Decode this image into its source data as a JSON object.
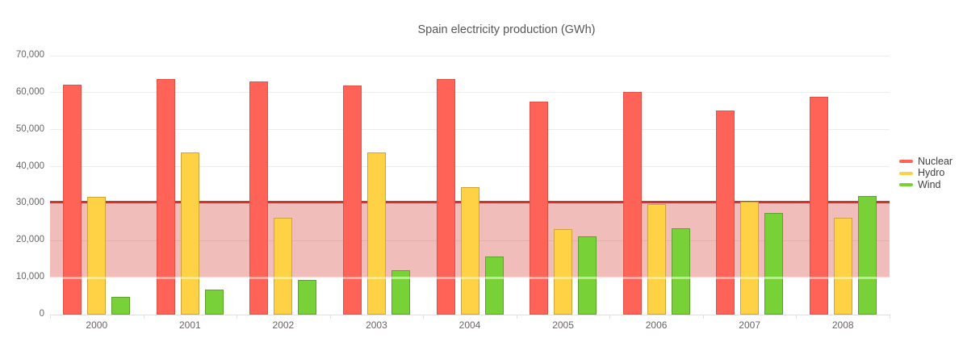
{
  "chart_data": {
    "type": "bar",
    "title": "Spain electricity production (GWh)",
    "categories": [
      "2000",
      "2001",
      "2002",
      "2003",
      "2004",
      "2005",
      "2006",
      "2007",
      "2008"
    ],
    "series": [
      {
        "name": "Nuclear",
        "color": "#ff6358",
        "border_color": "#dd5147",
        "values": [
          62206,
          63708,
          63016,
          61875,
          63606,
          57539,
          60126,
          55102,
          58973
        ]
      },
      {
        "name": "Hydro",
        "color": "#ffd246",
        "border_color": "#cfa43b",
        "values": [
          31807,
          43864,
          26270,
          43897,
          34439,
          23025,
          29831,
          30522,
          26112
        ]
      },
      {
        "name": "Wind",
        "color": "#78d237",
        "border_color": "#5da32b",
        "values": [
          4727,
          6759,
          9342,
          12075,
          15700,
          21176,
          23297,
          27568,
          32160
        ]
      }
    ],
    "xlabel": "",
    "ylabel": "",
    "ylim": [
      0,
      70000
    ],
    "y_ticks": [
      {
        "value": 0,
        "label": "0"
      },
      {
        "value": 10000,
        "label": "10,000"
      },
      {
        "value": 20000,
        "label": "20,000"
      },
      {
        "value": 30000,
        "label": "30,000"
      },
      {
        "value": 40000,
        "label": "40,000"
      },
      {
        "value": 50000,
        "label": "50,000"
      },
      {
        "value": 60000,
        "label": "60,000"
      },
      {
        "value": 70000,
        "label": "70,000"
      }
    ],
    "plot_band": {
      "from": 10000,
      "to": 30500,
      "color": "rgba(209,49,44,0.32)"
    },
    "plot_line": {
      "value": 30500,
      "color": "#d1342e",
      "width": 3
    },
    "grid": "horizontal",
    "legend_position": "right",
    "legend_items": [
      "Nuclear",
      "Hydro",
      "Wind"
    ]
  }
}
